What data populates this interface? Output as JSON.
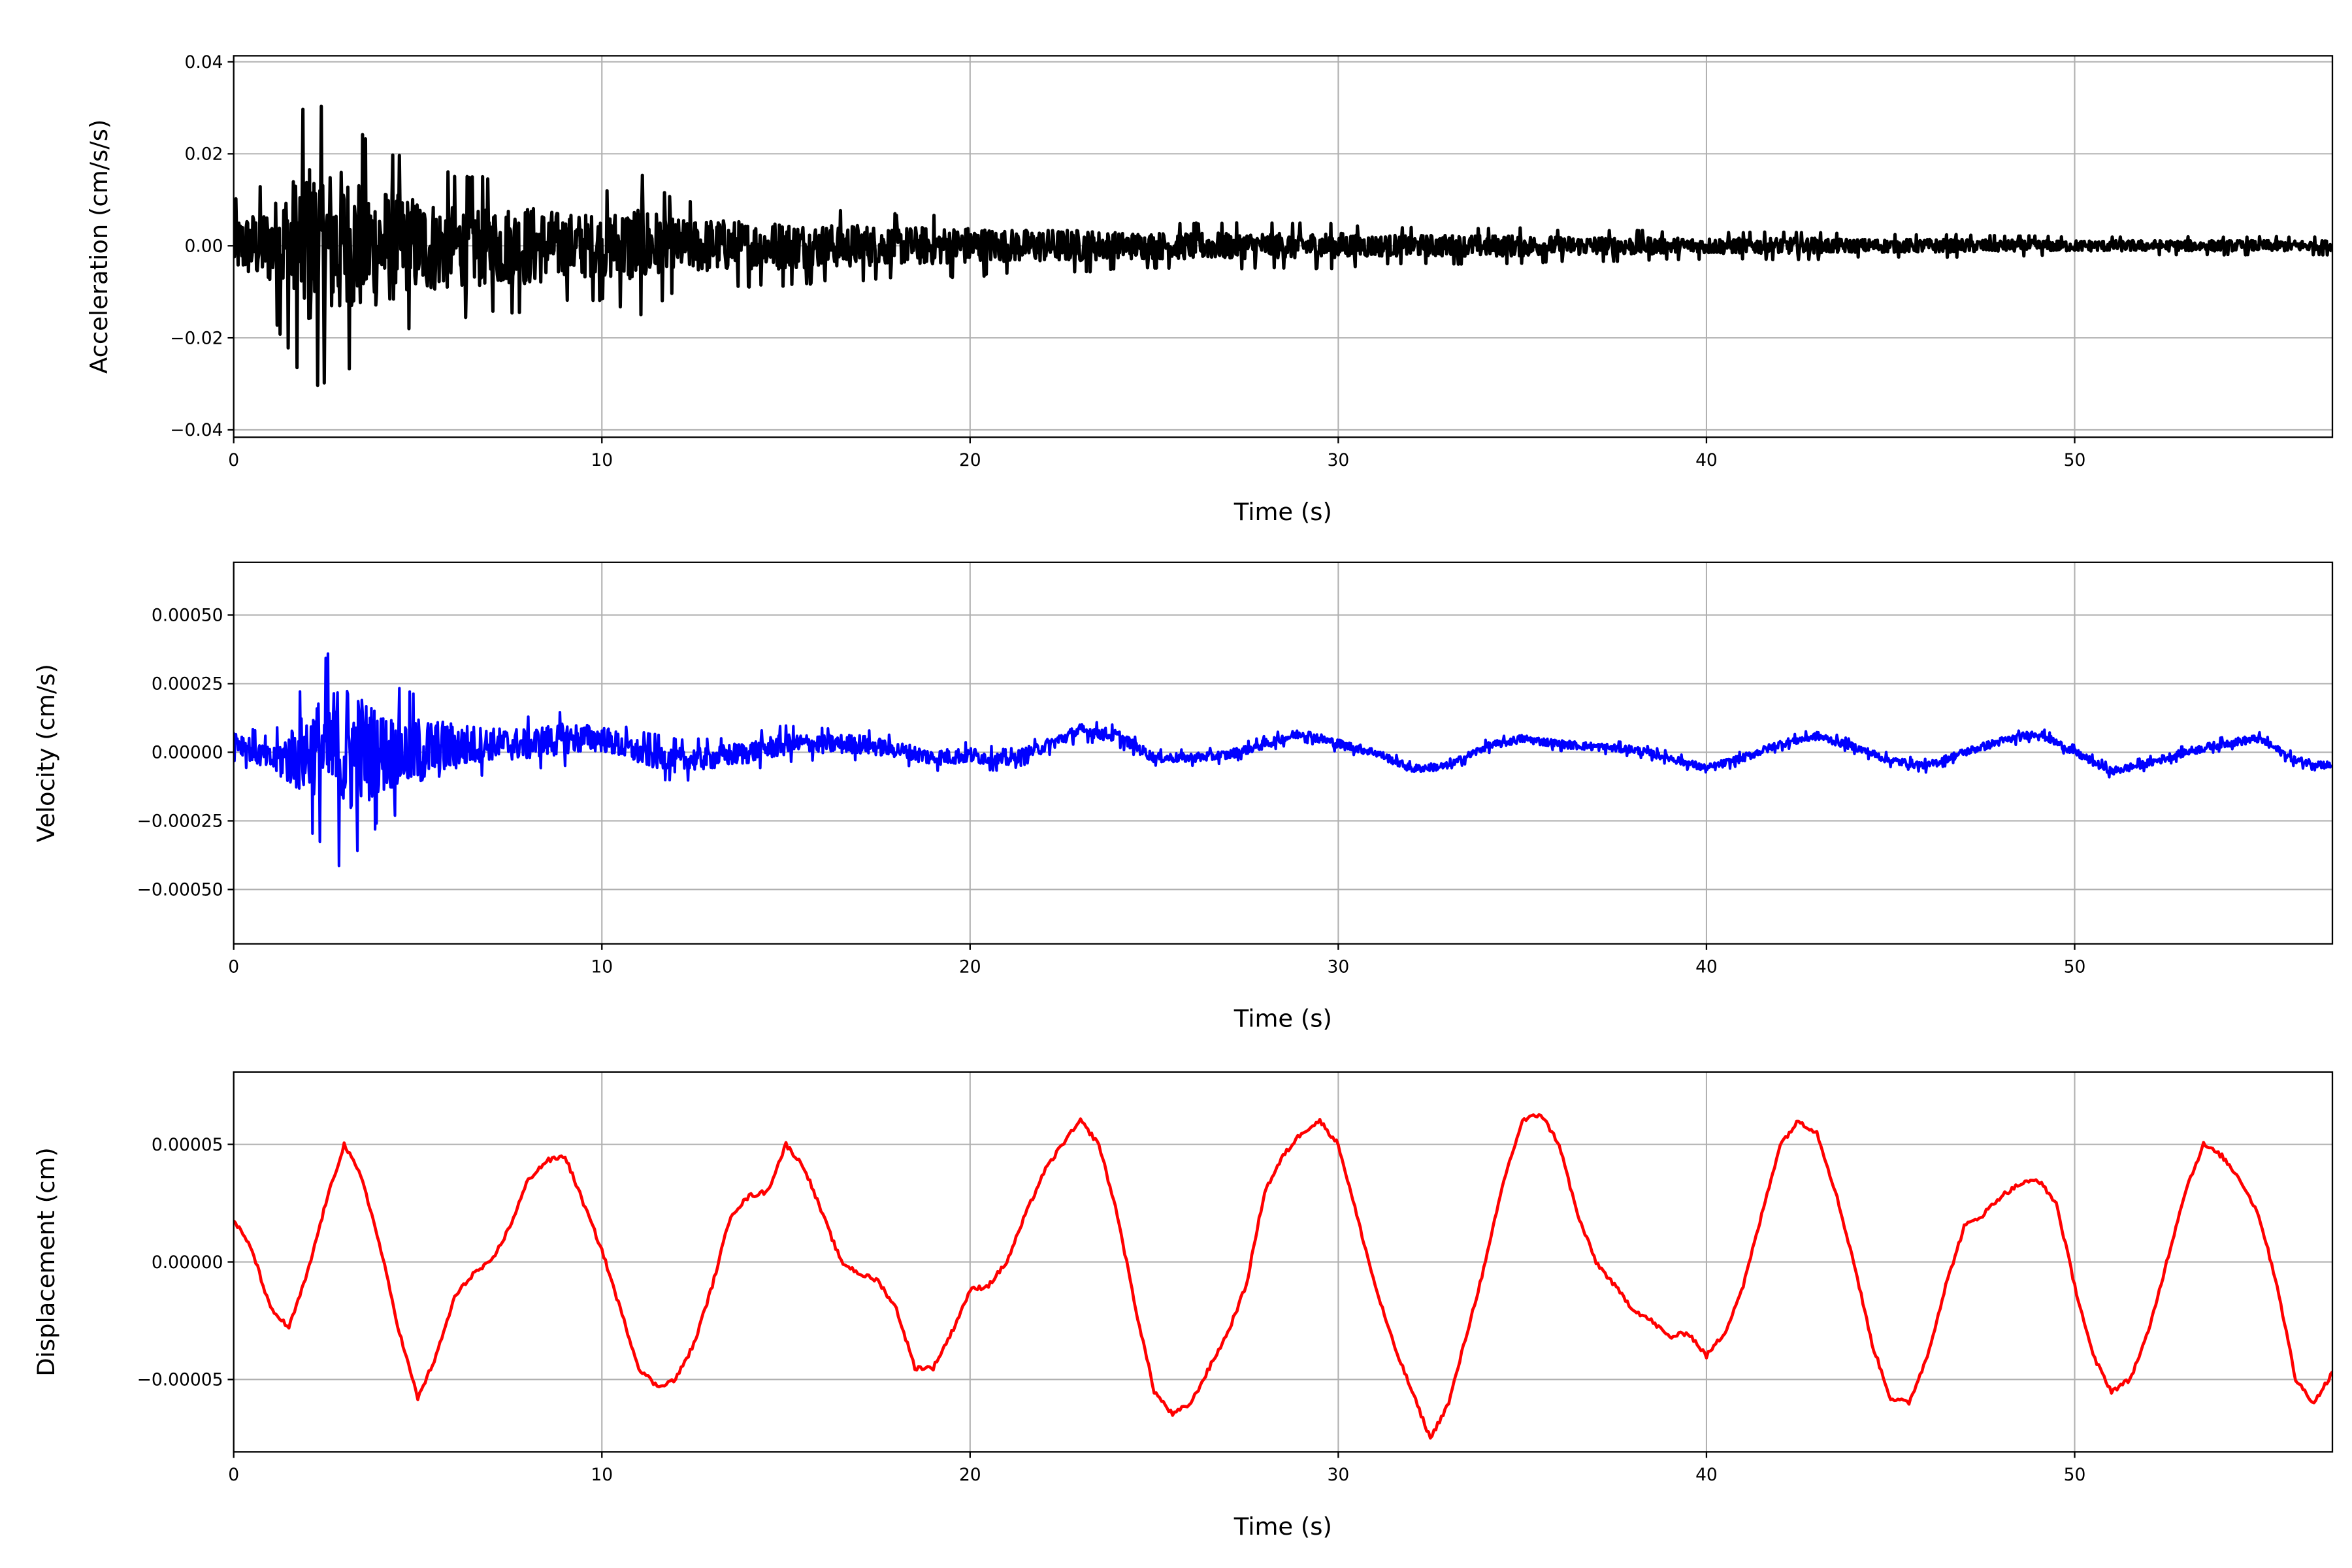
{
  "chart_data": [
    {
      "type": "line",
      "xlabel": "Time (s)",
      "ylabel": "Acceleration (cm/s/s)",
      "xlim": [
        0,
        57
      ],
      "ylim": [
        -0.0416,
        0.0413
      ],
      "xticks": [
        0,
        10,
        20,
        30,
        40,
        50
      ],
      "yticks": [
        -0.04,
        -0.02,
        0.0,
        0.02,
        0.04
      ],
      "ytick_labels": [
        "−0.04",
        "−0.02",
        "0.00",
        "0.02",
        "0.04"
      ],
      "grid": true,
      "color": "#000000",
      "series_description_units": "per-second mean and half-range amplitude",
      "mean": [
        0,
        0,
        0,
        0,
        0,
        0,
        0,
        0,
        0,
        0,
        0,
        0,
        0,
        0,
        0,
        0,
        0,
        0,
        0,
        0,
        0,
        0,
        0,
        0,
        0,
        0,
        0,
        0,
        0,
        0,
        0,
        0,
        0,
        0,
        0,
        0,
        0,
        0,
        0,
        0,
        0,
        0,
        0,
        0,
        0,
        0,
        0,
        0,
        0,
        0,
        0,
        0,
        0,
        0,
        0,
        0,
        0,
        0
      ],
      "amplitude": [
        0.01,
        0.015,
        0.032,
        0.028,
        0.022,
        0.018,
        0.016,
        0.015,
        0.015,
        0.012,
        0.012,
        0.016,
        0.01,
        0.01,
        0.009,
        0.009,
        0.008,
        0.008,
        0.007,
        0.007,
        0.007,
        0.006,
        0.006,
        0.006,
        0.005,
        0.005,
        0.005,
        0.005,
        0.005,
        0.005,
        0.005,
        0.004,
        0.004,
        0.004,
        0.004,
        0.004,
        0.0035,
        0.0035,
        0.0035,
        0.003,
        0.003,
        0.003,
        0.003,
        0.003,
        0.0025,
        0.0025,
        0.0025,
        0.0025,
        0.0022,
        0.0022,
        0.002,
        0.002,
        0.002,
        0.002,
        0.002,
        0.002,
        0.002,
        0.002
      ]
    },
    {
      "type": "line",
      "xlabel": "Time (s)",
      "ylabel": "Velocity (cm/s)",
      "xlim": [
        0,
        57
      ],
      "ylim": [
        -0.000698,
        0.000692
      ],
      "xticks": [
        0,
        10,
        20,
        30,
        40,
        50
      ],
      "yticks": [
        -0.0005,
        -0.00025,
        0.0,
        0.00025,
        0.0005
      ],
      "ytick_labels": [
        "−0.00050",
        "−0.00025",
        "0.00000",
        "0.00025",
        "0.00050"
      ],
      "grid": true,
      "color": "#0000ff",
      "mean": [
        5e-05,
        -3e-05,
        0,
        0,
        0,
        0,
        2e-05,
        3e-05,
        3e-05,
        5e-05,
        5e-05,
        0,
        -3e-05,
        -2e-05,
        0,
        3e-05,
        3e-05,
        3e-05,
        1e-05,
        -2e-05,
        -1e-05,
        -3e-05,
        2e-05,
        8e-05,
        6e-05,
        -2e-05,
        -2e-05,
        -1e-05,
        3e-05,
        7e-05,
        3e-05,
        0,
        -6e-05,
        -5e-05,
        2e-05,
        5e-05,
        3e-05,
        2e-05,
        1e-05,
        -2e-05,
        -6e-05,
        -2e-05,
        3e-05,
        6e-05,
        2e-05,
        -3e-05,
        -5e-05,
        0,
        4e-05,
        7e-05,
        0,
        -7e-05,
        -4e-05,
        0,
        3e-05,
        5e-05,
        -3e-05,
        -5e-05
      ],
      "amplitude": [
        8e-05,
        8e-05,
        0.00028,
        0.00045,
        0.00025,
        0.00022,
        0.00015,
        0.0001,
        0.0001,
        0.0001,
        8e-05,
        8e-05,
        8e-05,
        7e-05,
        7e-05,
        7e-05,
        6e-05,
        6e-05,
        5e-05,
        5e-05,
        5e-05,
        4e-05,
        4e-05,
        4e-05,
        4e-05,
        3e-05,
        3e-05,
        3e-05,
        3e-05,
        3e-05,
        3e-05,
        2.5e-05,
        2.5e-05,
        2.5e-05,
        2.5e-05,
        2.5e-05,
        2.5e-05,
        2.5e-05,
        2.5e-05,
        2.5e-05,
        2.5e-05,
        2.5e-05,
        2.5e-05,
        2.5e-05,
        2.5e-05,
        2.5e-05,
        2.5e-05,
        2.5e-05,
        2.5e-05,
        2.5e-05,
        2.5e-05,
        2.5e-05,
        2.5e-05,
        2.5e-05,
        2.5e-05,
        2.5e-05,
        2.5e-05,
        2.5e-05
      ]
    },
    {
      "type": "line",
      "xlabel": "Time (s)",
      "ylabel": "Displacement (cm)",
      "xlim": [
        0,
        57
      ],
      "ylim": [
        -8.08e-05,
        8.08e-05
      ],
      "xticks": [
        0,
        10,
        20,
        30,
        40,
        50
      ],
      "yticks": [
        -5e-05,
        0.0,
        5e-05
      ],
      "ytick_labels": [
        "−0.00005",
        "0.00000",
        "0.00005"
      ],
      "grid": true,
      "color": "#ff0000",
      "x_step": 0.5,
      "values": [
        1.8e-05,
        5e-06,
        -2e-05,
        -2.8e-05,
        -5e-06,
        2.5e-05,
        5e-05,
        3.5e-05,
        5e-06,
        -3e-05,
        -5.8e-05,
        -4e-05,
        -1.5e-05,
        -5e-06,
        0,
        1.5e-05,
        3.5e-05,
        4.3e-05,
        4.5e-05,
        2.5e-05,
        5e-06,
        -2e-05,
        -4.5e-05,
        -5.3e-05,
        -5e-05,
        -3.5e-05,
        -1e-05,
        2e-05,
        2.8e-05,
        3e-05,
        5e-05,
        4e-05,
        2e-05,
        0,
        -5e-06,
        -8e-06,
        -2e-05,
        -4.5e-05,
        -4.5e-05,
        -3e-05,
        -1.2e-05,
        -1e-05,
        0,
        2e-05,
        3.8e-05,
        5e-05,
        6e-05,
        5e-05,
        2e-05,
        -2e-05,
        -5.5e-05,
        -6.5e-05,
        -6e-05,
        -4.5e-05,
        -3e-05,
        -1e-05,
        3e-05,
        4.5e-05,
        5.5e-05,
        6e-05,
        5e-05,
        2e-05,
        -1e-05,
        -3.5e-05,
        -5.5e-05,
        -7.5e-05,
        -6e-05,
        -3e-05,
        0,
        3.5e-05,
        6e-05,
        6.3e-05,
        5e-05,
        2e-05,
        0,
        -1e-05,
        -2e-05,
        -2.5e-05,
        -3.2e-05,
        -3e-05,
        -4e-05,
        -3e-05,
        -1e-05,
        2e-05,
        5e-05,
        6e-05,
        5.5e-05,
        3e-05,
        0,
        -3.5e-05,
        -5.8e-05,
        -6e-05,
        -4e-05,
        -1e-05,
        1.5e-05,
        2e-05,
        2.8e-05,
        3.3e-05,
        3.5e-05,
        2.5e-05,
        -1e-05,
        -4e-05,
        -5.5e-05,
        -5e-05,
        -3e-05,
        0,
        3e-05,
        5e-05,
        4.5e-05,
        3.5e-05,
        2e-05,
        -1e-05,
        -5e-05,
        -6e-05,
        -4.7e-05
      ]
    }
  ]
}
